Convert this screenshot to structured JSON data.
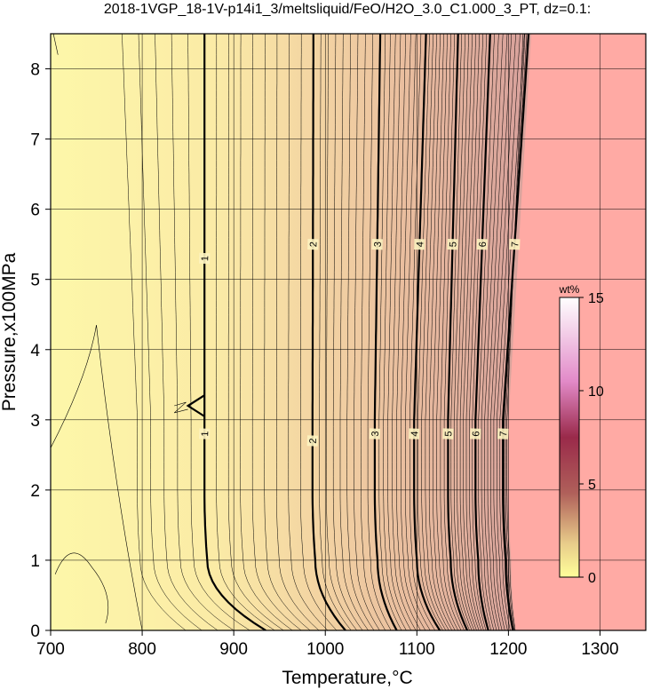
{
  "chart_data": {
    "type": "contour",
    "title": "2018-1VGP_18-1V-p14i1_3/meltsliquid/FeO/H2O_3.0_C1.000_3_PT, dz=0.1:",
    "xlabel": "Temperature,°C",
    "ylabel": "Pressure,x100MPa",
    "xlim": [
      700,
      1350
    ],
    "ylim": [
      0,
      8.5
    ],
    "xticks": [
      "700",
      "800",
      "900",
      "1000",
      "1100",
      "1200",
      "1300"
    ],
    "yticks": [
      "0",
      "1",
      "2",
      "3",
      "4",
      "5",
      "6",
      "7",
      "8"
    ],
    "grid": true,
    "colorbar": {
      "unit": "wt%",
      "range": [
        0,
        15
      ],
      "ticks": [
        "0",
        "5",
        "10",
        "15"
      ],
      "position": "right"
    },
    "colors": {
      "low": "#fdf7a9",
      "mid": "#f0cfa2",
      "high": "#d9a39c",
      "saturated": "#ffaaa4"
    },
    "contour_lines": [
      {
        "level": "1",
        "label_y": [
          5.3,
          2.8
        ],
        "x_top": 868,
        "x_p3": 868,
        "x_bottom": 935
      },
      {
        "level": "2",
        "label_y": [
          5.5,
          2.7
        ],
        "x_top": 987,
        "x_p3": 986,
        "x_bottom": 1022
      },
      {
        "level": "3",
        "label_y": [
          5.5,
          2.8
        ],
        "x_top": 1060,
        "x_p3": 1054,
        "x_bottom": 1078
      },
      {
        "level": "4",
        "label_y": [
          5.5,
          2.8
        ],
        "x_top": 1110,
        "x_p3": 1097,
        "x_bottom": 1125
      },
      {
        "level": "5",
        "label_y": [
          5.5,
          2.8
        ],
        "x_top": 1145,
        "x_p3": 1134,
        "x_bottom": 1155
      },
      {
        "level": "6",
        "label_y": [
          5.5,
          2.8
        ],
        "x_top": 1180,
        "x_p3": 1164,
        "x_bottom": 1178
      },
      {
        "level": "7",
        "label_y": [
          5.5,
          2.8
        ],
        "x_top": 1222,
        "x_p3": 1194,
        "x_bottom": 1205
      }
    ]
  }
}
